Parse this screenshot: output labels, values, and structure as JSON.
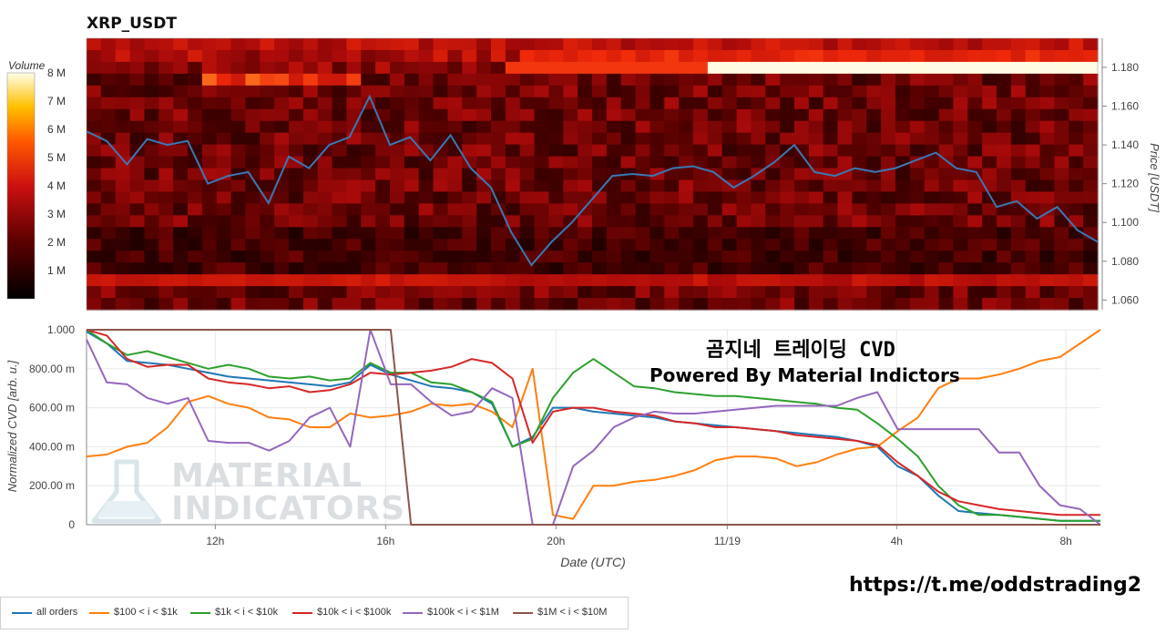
{
  "title": "XRP_USDT",
  "watermark": [
    "MATERIAL",
    "INDICATORS"
  ],
  "annotation": {
    "line1": "곰지네 트레이딩 CVD",
    "line2": "Powered By Material Indictors"
  },
  "link": "https://t.me/oddstrading2",
  "colors": {
    "price_line": "#3b78b3",
    "all_orders": "#1f77b4",
    "b100_1k": "#ff7f0e",
    "b1k_10k": "#2ca02c",
    "b10k_100k": "#d62728",
    "b100k_1m": "#9467bd",
    "b1m_10m": "#8c564b"
  },
  "chart_data": [
    {
      "type": "heatmap",
      "title": "XRP_USDT",
      "ylabel": "Price [USDT]",
      "ylim": [
        1.055,
        1.195
      ],
      "yticks": [
        "1.060",
        "1.080",
        "1.100",
        "1.120",
        "1.140",
        "1.160",
        "1.180"
      ],
      "colorbar": {
        "label": "Volume",
        "ticks": [
          "1 M",
          "2 M",
          "3 M",
          "4 M",
          "5 M",
          "6 M",
          "7 M",
          "8 M"
        ],
        "range": [
          0,
          8
        ]
      },
      "price_series": {
        "name": "Price",
        "x": [
          0,
          2,
          4,
          6,
          8,
          10,
          12,
          14,
          16,
          18,
          20,
          22,
          24,
          26,
          28,
          30,
          32,
          34,
          36,
          38,
          40,
          42,
          44,
          46,
          48,
          50,
          52,
          54,
          56,
          58,
          60,
          62,
          64,
          66,
          68,
          70,
          72,
          74,
          76,
          78,
          80,
          82,
          84,
          86,
          88,
          90,
          92,
          94,
          96,
          98,
          100
        ],
        "values": [
          1.147,
          1.142,
          1.13,
          1.143,
          1.14,
          1.142,
          1.12,
          1.124,
          1.126,
          1.11,
          1.134,
          1.128,
          1.14,
          1.144,
          1.165,
          1.14,
          1.144,
          1.132,
          1.145,
          1.128,
          1.118,
          1.095,
          1.078,
          1.09,
          1.1,
          1.112,
          1.124,
          1.125,
          1.124,
          1.128,
          1.129,
          1.126,
          1.118,
          1.124,
          1.131,
          1.14,
          1.126,
          1.124,
          1.128,
          1.126,
          1.128,
          1.132,
          1.136,
          1.128,
          1.126,
          1.108,
          1.111,
          1.102,
          1.108,
          1.096,
          1.09
        ]
      }
    },
    {
      "type": "line",
      "xlabel": "Date (UTC)",
      "ylabel": "Normalized CVD [arb. u.]",
      "ylim": [
        0,
        1
      ],
      "yticks": [
        "0",
        "200.00 m",
        "400.00 m",
        "600.00 m",
        "800.00 m",
        "1.000"
      ],
      "xticks": [
        "12h",
        "16h",
        "20h",
        "11/19",
        "4h",
        "8h"
      ],
      "x": [
        0,
        2,
        4,
        6,
        8,
        10,
        12,
        14,
        16,
        18,
        20,
        22,
        24,
        26,
        28,
        30,
        32,
        34,
        36,
        38,
        40,
        42,
        44,
        46,
        48,
        50,
        52,
        54,
        56,
        58,
        60,
        62,
        64,
        66,
        68,
        70,
        72,
        74,
        76,
        78,
        80,
        82,
        84,
        86,
        88,
        90,
        92,
        94,
        96,
        98,
        100
      ],
      "series": [
        {
          "name": "all orders",
          "color_key": "all_orders",
          "values": [
            0.99,
            0.93,
            0.84,
            0.83,
            0.82,
            0.8,
            0.78,
            0.76,
            0.75,
            0.74,
            0.73,
            0.72,
            0.71,
            0.73,
            0.82,
            0.77,
            0.74,
            0.71,
            0.7,
            0.68,
            0.62,
            0.4,
            0.45,
            0.6,
            0.6,
            0.58,
            0.57,
            0.56,
            0.55,
            0.53,
            0.52,
            0.51,
            0.5,
            0.49,
            0.48,
            0.47,
            0.46,
            0.45,
            0.43,
            0.4,
            0.3,
            0.25,
            0.15,
            0.07,
            0.06,
            0.05,
            0.04,
            0.03,
            0.02,
            0.02,
            0.02
          ]
        },
        {
          "name": "$100 < i < $1k",
          "color_key": "b100_1k",
          "values": [
            0.35,
            0.36,
            0.4,
            0.42,
            0.5,
            0.63,
            0.66,
            0.62,
            0.6,
            0.55,
            0.54,
            0.5,
            0.5,
            0.57,
            0.55,
            0.56,
            0.58,
            0.62,
            0.61,
            0.62,
            0.58,
            0.5,
            0.8,
            0.05,
            0.03,
            0.2,
            0.2,
            0.22,
            0.23,
            0.25,
            0.28,
            0.33,
            0.35,
            0.35,
            0.34,
            0.3,
            0.32,
            0.36,
            0.39,
            0.4,
            0.48,
            0.55,
            0.7,
            0.75,
            0.75,
            0.77,
            0.8,
            0.84,
            0.86,
            0.93,
            1.0
          ]
        },
        {
          "name": "$1k < i < $10k",
          "color_key": "b1k_10k",
          "values": [
            1.0,
            0.93,
            0.87,
            0.89,
            0.86,
            0.83,
            0.8,
            0.82,
            0.8,
            0.76,
            0.75,
            0.76,
            0.74,
            0.75,
            0.83,
            0.78,
            0.78,
            0.73,
            0.72,
            0.68,
            0.63,
            0.4,
            0.44,
            0.65,
            0.78,
            0.85,
            0.78,
            0.71,
            0.7,
            0.68,
            0.67,
            0.66,
            0.66,
            0.65,
            0.64,
            0.63,
            0.62,
            0.6,
            0.59,
            0.52,
            0.44,
            0.35,
            0.2,
            0.1,
            0.05,
            0.05,
            0.04,
            0.03,
            0.02,
            0.02,
            0.02
          ]
        },
        {
          "name": "$10k < i < $100k",
          "color_key": "b10k_100k",
          "values": [
            1.0,
            0.97,
            0.85,
            0.81,
            0.82,
            0.82,
            0.75,
            0.73,
            0.72,
            0.7,
            0.71,
            0.68,
            0.69,
            0.72,
            0.78,
            0.77,
            0.78,
            0.79,
            0.81,
            0.85,
            0.83,
            0.75,
            0.42,
            0.58,
            0.6,
            0.6,
            0.58,
            0.57,
            0.56,
            0.53,
            0.52,
            0.5,
            0.5,
            0.49,
            0.48,
            0.46,
            0.45,
            0.44,
            0.43,
            0.41,
            0.32,
            0.25,
            0.17,
            0.12,
            0.1,
            0.08,
            0.07,
            0.06,
            0.05,
            0.05,
            0.05
          ]
        },
        {
          "name": "$100k < i < $1M",
          "color_key": "b100k_1m",
          "values": [
            0.95,
            0.73,
            0.72,
            0.65,
            0.62,
            0.65,
            0.43,
            0.42,
            0.42,
            0.38,
            0.43,
            0.55,
            0.6,
            0.4,
            1.0,
            0.72,
            0.72,
            0.63,
            0.56,
            0.58,
            0.7,
            0.65,
            0.0,
            0.0,
            0.3,
            0.38,
            0.5,
            0.55,
            0.58,
            0.57,
            0.57,
            0.58,
            0.59,
            0.6,
            0.61,
            0.61,
            0.61,
            0.61,
            0.65,
            0.68,
            0.49,
            0.49,
            0.49,
            0.49,
            0.49,
            0.37,
            0.37,
            0.2,
            0.1,
            0.08,
            0.0
          ]
        },
        {
          "name": "$1M < i < $10M",
          "color_key": "b1m_10m",
          "values": [
            1.0,
            1.0,
            1.0,
            1.0,
            1.0,
            1.0,
            1.0,
            1.0,
            1.0,
            1.0,
            1.0,
            1.0,
            1.0,
            1.0,
            1.0,
            1.0,
            0.0,
            0.0,
            0.0,
            0.0,
            0.0,
            0.0,
            0.0,
            0.0,
            0.0,
            0.0,
            0.0,
            0.0,
            0.0,
            0.0,
            0.0,
            0.0,
            0.0,
            0.0,
            0.0,
            0.0,
            0.0,
            0.0,
            0.0,
            0.0,
            0.0,
            0.0,
            0.0,
            0.0,
            0.0,
            0.0,
            0.0,
            0.0,
            0.0,
            0.0,
            0.0
          ]
        }
      ]
    }
  ]
}
